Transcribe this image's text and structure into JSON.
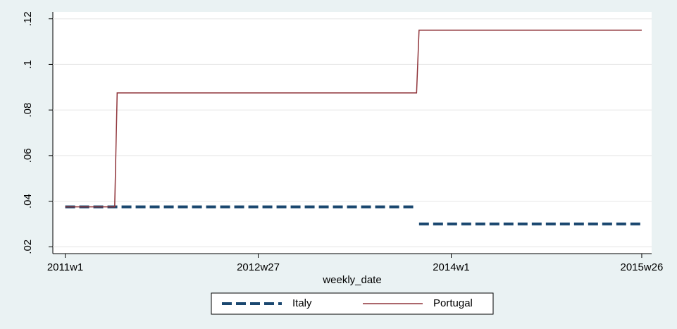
{
  "chart_data": {
    "type": "line",
    "x_label": "weekly_date",
    "x": [
      2652,
      2672,
      2673,
      2793,
      2794,
      2795,
      2885
    ],
    "series": [
      {
        "name": "Italy",
        "color": "#1a476f",
        "dash": true,
        "values": [
          0.0375,
          0.0375,
          0.0375,
          0.0375,
          null,
          0.03,
          0.03
        ]
      },
      {
        "name": "Portugal",
        "color": "#90353b",
        "dash": false,
        "values": [
          0.0375,
          0.0375,
          0.0875,
          0.0875,
          0.0875,
          0.115,
          0.115
        ]
      }
    ],
    "xlim": [
      2647,
      2889
    ],
    "xticks": [
      {
        "value": 2652,
        "label": "2011w1"
      },
      {
        "value": 2730,
        "label": "2012w27"
      },
      {
        "value": 2808,
        "label": "2014w1"
      },
      {
        "value": 2885,
        "label": "2015w26"
      }
    ],
    "ylim": [
      0.017,
      0.123
    ],
    "yticks": [
      {
        "value": 0.02,
        "label": ".02"
      },
      {
        "value": 0.04,
        "label": ".04"
      },
      {
        "value": 0.06,
        "label": ".06"
      },
      {
        "value": 0.08,
        "label": ".08"
      },
      {
        "value": 0.1,
        "label": ".1"
      },
      {
        "value": 0.12,
        "label": ".12"
      }
    ],
    "grid": true
  }
}
